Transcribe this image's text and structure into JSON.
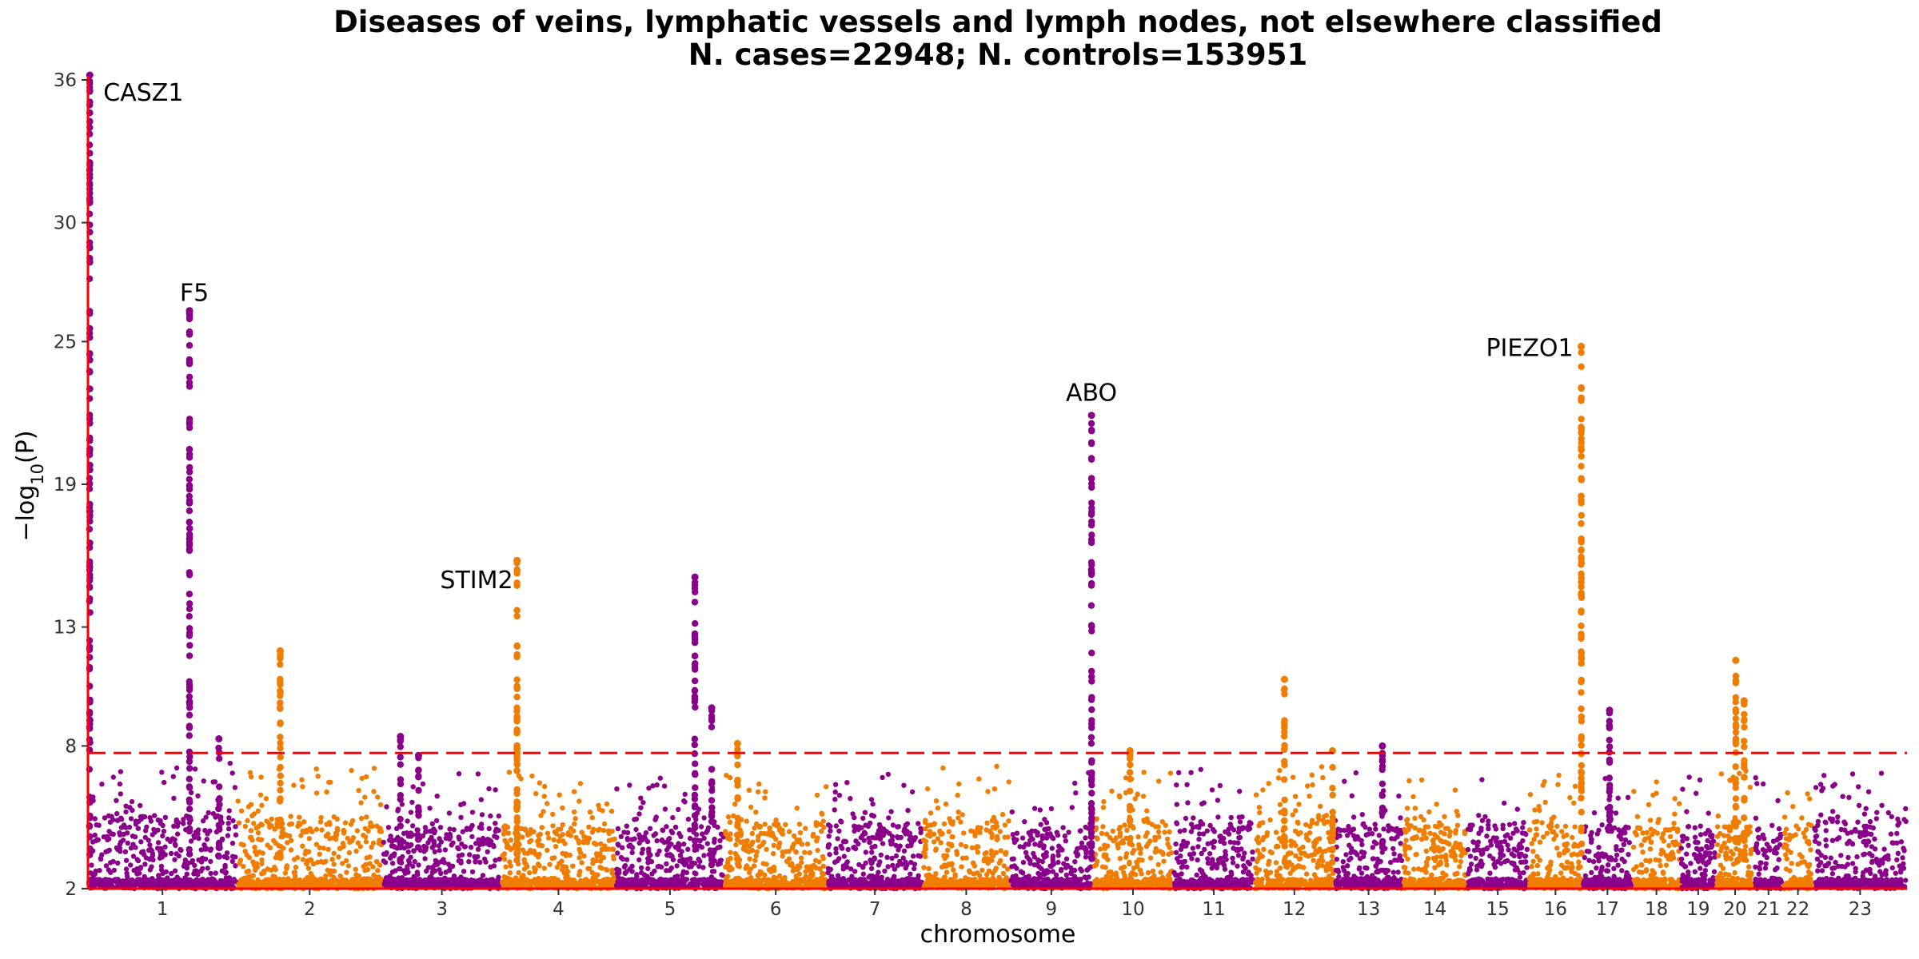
{
  "chart_data": {
    "type": "scatter",
    "subtype": "manhattan",
    "title": "Diseases of veins, lymphatic vessels and lymph nodes, not elsewhere classified",
    "subtitle": "N. cases=22948; N. controls=153951",
    "xlabel": "chromosome",
    "ylabel": "−log10(P)",
    "ylim": [
      2,
      36
    ],
    "yticks": [
      2,
      8,
      13,
      19,
      25,
      30,
      36
    ],
    "significance_threshold": 7.7,
    "colors": {
      "odd": "#8b008b",
      "even": "#f07c00",
      "threshold": "#ff0000",
      "axis": "#ff0000"
    },
    "chromosomes": [
      {
        "label": "1",
        "start": 0,
        "end": 248,
        "base": 5.0
      },
      {
        "label": "2",
        "start": 248,
        "end": 490,
        "base": 4.7
      },
      {
        "label": "3",
        "start": 490,
        "end": 688,
        "base": 4.5
      },
      {
        "label": "4",
        "start": 688,
        "end": 878,
        "base": 4.5
      },
      {
        "label": "5",
        "start": 878,
        "end": 1059,
        "base": 4.6
      },
      {
        "label": "6",
        "start": 1059,
        "end": 1230,
        "base": 4.7
      },
      {
        "label": "7",
        "start": 1230,
        "end": 1389,
        "base": 4.6
      },
      {
        "label": "8",
        "start": 1389,
        "end": 1534,
        "base": 4.8
      },
      {
        "label": "9",
        "start": 1534,
        "end": 1672,
        "base": 4.5
      },
      {
        "label": "10",
        "start": 1672,
        "end": 1806,
        "base": 4.6
      },
      {
        "label": "11",
        "start": 1806,
        "end": 1941,
        "base": 4.7
      },
      {
        "label": "12",
        "start": 1941,
        "end": 2074,
        "base": 4.8
      },
      {
        "label": "13",
        "start": 2074,
        "end": 2188,
        "base": 4.5
      },
      {
        "label": "14",
        "start": 2188,
        "end": 2295,
        "base": 4.6
      },
      {
        "label": "15",
        "start": 2295,
        "end": 2397,
        "base": 4.5
      },
      {
        "label": "16",
        "start": 2397,
        "end": 2487,
        "base": 4.6
      },
      {
        "label": "17",
        "start": 2487,
        "end": 2570,
        "base": 4.7
      },
      {
        "label": "18",
        "start": 2570,
        "end": 2650,
        "base": 4.5
      },
      {
        "label": "19",
        "start": 2650,
        "end": 2709,
        "base": 4.6
      },
      {
        "label": "20",
        "start": 2709,
        "end": 2773,
        "base": 4.6
      },
      {
        "label": "21",
        "start": 2773,
        "end": 2820,
        "base": 4.5
      },
      {
        "label": "22",
        "start": 2820,
        "end": 2871,
        "base": 4.5
      },
      {
        "label": "23",
        "start": 2871,
        "end": 3027,
        "base": 4.8
      }
    ],
    "peaks": [
      {
        "chrom": "1",
        "pos": 3,
        "top": 36.2,
        "width": 1.2
      },
      {
        "chrom": "1",
        "pos": 169,
        "top": 26.3,
        "width": 1.0
      },
      {
        "chrom": "1",
        "pos": 218,
        "top": 8.3,
        "width": 3.0
      },
      {
        "chrom": "2",
        "pos": 72,
        "top": 12.0,
        "width": 1.2
      },
      {
        "chrom": "3",
        "pos": 30,
        "top": 8.4,
        "width": 1.0
      },
      {
        "chrom": "3",
        "pos": 60,
        "top": 7.6,
        "width": 1.0
      },
      {
        "chrom": "4",
        "pos": 26,
        "top": 15.8,
        "width": 0.5
      },
      {
        "chrom": "4",
        "pos": 26,
        "top": 7.9,
        "width": 1.2
      },
      {
        "chrom": "5",
        "pos": 132,
        "top": 15.1,
        "width": 1.2
      },
      {
        "chrom": "5",
        "pos": 160,
        "top": 9.6,
        "width": 1.0
      },
      {
        "chrom": "6",
        "pos": 22,
        "top": 8.1,
        "width": 1.2
      },
      {
        "chrom": "9",
        "pos": 136,
        "top": 21.9,
        "width": 0.9
      },
      {
        "chrom": "10",
        "pos": 62,
        "top": 7.8,
        "width": 1.0
      },
      {
        "chrom": "12",
        "pos": 50,
        "top": 10.8,
        "width": 1.2
      },
      {
        "chrom": "12",
        "pos": 130,
        "top": 7.8,
        "width": 1.0
      },
      {
        "chrom": "13",
        "pos": 80,
        "top": 8.0,
        "width": 1.0
      },
      {
        "chrom": "16",
        "pos": 88,
        "top": 24.8,
        "width": 0.9
      },
      {
        "chrom": "17",
        "pos": 45,
        "top": 9.5,
        "width": 1.2
      },
      {
        "chrom": "20",
        "pos": 33,
        "top": 11.6,
        "width": 1.0
      },
      {
        "chrom": "20",
        "pos": 47,
        "top": 9.9,
        "width": 1.2
      }
    ],
    "annotations": [
      {
        "gene": "CASZ1",
        "x": 3,
        "y": 36.2,
        "anchor": "start",
        "dx": 17,
        "dy": 32
      },
      {
        "gene": "F5",
        "x": 169,
        "y": 26.3,
        "anchor": "middle",
        "dx": 6,
        "dy": -12
      },
      {
        "gene": "STIM2",
        "x": 714,
        "y": 15.8,
        "anchor": "end",
        "dx": -5,
        "dy": 35
      },
      {
        "gene": "ABO",
        "x": 1670,
        "y": 21.9,
        "anchor": "middle",
        "dx": 0,
        "dy": -18
      },
      {
        "gene": "PIEZO1",
        "x": 2485,
        "y": 24.8,
        "anchor": "end",
        "dx": -10,
        "dy": 12
      }
    ]
  }
}
